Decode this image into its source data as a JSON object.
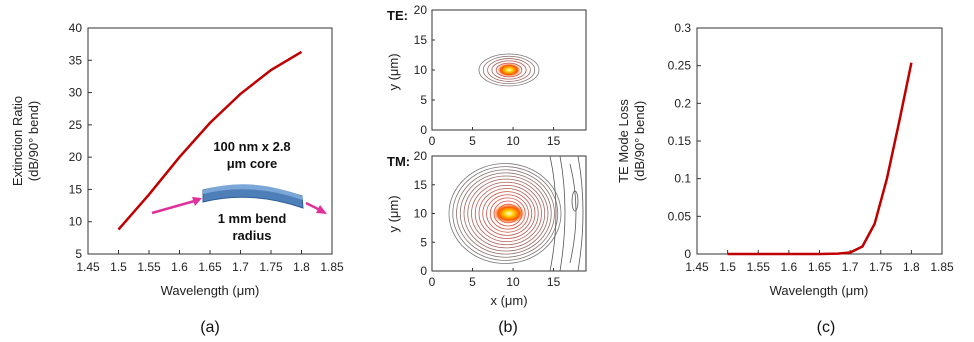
{
  "chart_data": [
    {
      "id": "a",
      "type": "line",
      "panel_label": "(a)",
      "xlabel": "Wavelength (μm)",
      "ylabel_line1": "Extinction Ratio",
      "ylabel_line2": "(dB/90° bend)",
      "xlim": [
        1.45,
        1.85
      ],
      "ylim": [
        5,
        40
      ],
      "xticks": [
        "1.45",
        "1.5",
        "1.55",
        "1.6",
        "1.65",
        "1.7",
        "1.75",
        "1.8",
        "1.85"
      ],
      "yticks": [
        "5",
        "10",
        "15",
        "20",
        "25",
        "30",
        "35",
        "40"
      ],
      "series": [
        {
          "color": "#c00000",
          "x": [
            1.5,
            1.55,
            1.6,
            1.65,
            1.7,
            1.75,
            1.8
          ],
          "y": [
            8.8,
            14.2,
            20.0,
            25.3,
            29.8,
            33.5,
            36.3
          ]
        }
      ],
      "annotations": {
        "core_line1": "100 nm x 2.8",
        "core_line2": "μm core",
        "bend_line1": "1 mm bend",
        "bend_line2": "radius"
      }
    },
    {
      "id": "b",
      "type": "contour",
      "panel_label": "(b)",
      "xlabel": "x (μm)",
      "ylabel": "y (μm)",
      "subplots": [
        {
          "mode_label": "TE:",
          "xlim": [
            0,
            19
          ],
          "ylim": [
            0,
            20
          ],
          "xticks": [
            "0",
            "5",
            "10",
            "15"
          ],
          "yticks": [
            "0",
            "5",
            "10",
            "15",
            "20"
          ],
          "peak_center": [
            9.5,
            10
          ]
        },
        {
          "mode_label": "TM:",
          "xlim": [
            0,
            19
          ],
          "ylim": [
            0,
            20
          ],
          "xticks": [
            "0",
            "5",
            "10",
            "15"
          ],
          "yticks": [
            "0",
            "5",
            "10",
            "15",
            "20"
          ],
          "peak_center": [
            9.5,
            10
          ]
        }
      ]
    },
    {
      "id": "c",
      "type": "line",
      "panel_label": "(c)",
      "xlabel": "Wavelength (μm)",
      "ylabel_line1": "TE Mode Loss",
      "ylabel_line2": "(dB/90° bend)",
      "xlim": [
        1.45,
        1.85
      ],
      "ylim": [
        0,
        0.3
      ],
      "xticks": [
        "1.45",
        "1.5",
        "1.55",
        "1.6",
        "1.65",
        "1.7",
        "1.75",
        "1.8",
        "1.85"
      ],
      "yticks": [
        "0",
        "0.05",
        "0.1",
        "0.15",
        "0.2",
        "0.25",
        "0.3"
      ],
      "series": [
        {
          "color": "#c00000",
          "x": [
            1.5,
            1.6,
            1.65,
            1.68,
            1.7,
            1.72,
            1.74,
            1.76,
            1.78,
            1.8
          ],
          "y": [
            0,
            0,
            0,
            0.0005,
            0.002,
            0.01,
            0.04,
            0.1,
            0.175,
            0.254
          ]
        }
      ]
    }
  ]
}
